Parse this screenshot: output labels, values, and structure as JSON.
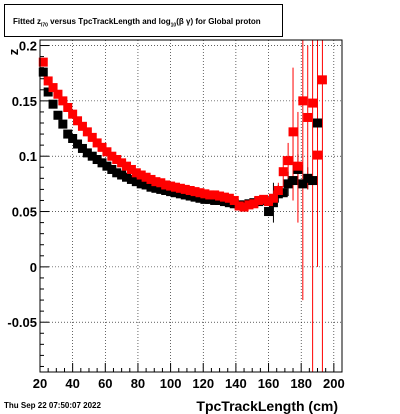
{
  "title": {
    "prefix": "Fitted  z",
    "sub1": "I70",
    "middle": "  versus TpcTrackLength and log",
    "sub2": "10",
    "suffix": "(β  γ) for Global proton"
  },
  "timestamp": "Thu Sep 22 07:50:07 2022",
  "chart_data": {
    "type": "scatter",
    "xlabel": "TpcTrackLength (cm)",
    "ylabel": "z",
    "xlim": [
      20,
      205
    ],
    "ylim": [
      -0.095,
      0.205
    ],
    "xticks": [
      20,
      40,
      60,
      80,
      100,
      120,
      140,
      160,
      180,
      200
    ],
    "yticks": [
      -0.05,
      0,
      0.05,
      0.1,
      0.15,
      0.2
    ],
    "ytick_labels": [
      "-0.05",
      "0",
      "0.05",
      "0.1",
      "0.15",
      "0.2"
    ],
    "grid": true,
    "series": [
      {
        "color": "#000000",
        "points": [
          {
            "x": 22,
            "y": 0.176
          },
          {
            "x": 25,
            "y": 0.158
          },
          {
            "x": 28,
            "y": 0.147
          },
          {
            "x": 31,
            "y": 0.137
          },
          {
            "x": 34,
            "y": 0.129
          },
          {
            "x": 37,
            "y": 0.12
          },
          {
            "x": 40,
            "y": 0.116
          },
          {
            "x": 43,
            "y": 0.111
          },
          {
            "x": 46,
            "y": 0.107
          },
          {
            "x": 49,
            "y": 0.103
          },
          {
            "x": 52,
            "y": 0.1
          },
          {
            "x": 55,
            "y": 0.097
          },
          {
            "x": 58,
            "y": 0.094
          },
          {
            "x": 61,
            "y": 0.091
          },
          {
            "x": 64,
            "y": 0.088
          },
          {
            "x": 67,
            "y": 0.085
          },
          {
            "x": 70,
            "y": 0.083
          },
          {
            "x": 73,
            "y": 0.081
          },
          {
            "x": 76,
            "y": 0.079
          },
          {
            "x": 79,
            "y": 0.077
          },
          {
            "x": 82,
            "y": 0.075
          },
          {
            "x": 85,
            "y": 0.074
          },
          {
            "x": 88,
            "y": 0.072
          },
          {
            "x": 91,
            "y": 0.071
          },
          {
            "x": 94,
            "y": 0.07
          },
          {
            "x": 97,
            "y": 0.069
          },
          {
            "x": 100,
            "y": 0.068
          },
          {
            "x": 103,
            "y": 0.067
          },
          {
            "x": 106,
            "y": 0.066
          },
          {
            "x": 109,
            "y": 0.065
          },
          {
            "x": 112,
            "y": 0.064
          },
          {
            "x": 115,
            "y": 0.063
          },
          {
            "x": 118,
            "y": 0.062
          },
          {
            "x": 121,
            "y": 0.061
          },
          {
            "x": 124,
            "y": 0.061
          },
          {
            "x": 127,
            "y": 0.06
          },
          {
            "x": 130,
            "y": 0.06
          },
          {
            "x": 133,
            "y": 0.059
          },
          {
            "x": 136,
            "y": 0.058
          },
          {
            "x": 139,
            "y": 0.057
          },
          {
            "x": 142,
            "y": 0.056
          },
          {
            "x": 145,
            "y": 0.056
          },
          {
            "x": 148,
            "y": 0.057
          },
          {
            "x": 151,
            "y": 0.058
          },
          {
            "x": 154,
            "y": 0.059
          },
          {
            "x": 157,
            "y": 0.06
          },
          {
            "x": 160,
            "y": 0.05
          },
          {
            "x": 163,
            "y": 0.058
          },
          {
            "x": 166,
            "y": 0.066
          },
          {
            "x": 169,
            "y": 0.067
          },
          {
            "x": 172,
            "y": 0.075
          },
          {
            "x": 175,
            "y": 0.078
          },
          {
            "x": 178,
            "y": 0.088
          },
          {
            "x": 181,
            "y": 0.075
          },
          {
            "x": 184,
            "y": 0.08
          },
          {
            "x": 187,
            "y": 0.078
          },
          {
            "x": 190,
            "y": 0.13
          }
        ],
        "error_bars": [
          {
            "x": 163,
            "lo": 0.04,
            "hi": 0.076
          },
          {
            "x": 166,
            "lo": 0.058,
            "hi": 0.074
          },
          {
            "x": 172,
            "lo": 0.064,
            "hi": 0.086
          },
          {
            "x": 178,
            "lo": 0.074,
            "hi": 0.102
          },
          {
            "x": 184,
            "lo": 0.07,
            "hi": 0.09
          },
          {
            "x": 190,
            "lo": 0.118,
            "hi": 0.142
          }
        ]
      },
      {
        "color": "#ff0000",
        "points": [
          {
            "x": 22,
            "y": 0.185
          },
          {
            "x": 25,
            "y": 0.168
          },
          {
            "x": 28,
            "y": 0.162
          },
          {
            "x": 31,
            "y": 0.156
          },
          {
            "x": 34,
            "y": 0.15
          },
          {
            "x": 37,
            "y": 0.144
          },
          {
            "x": 40,
            "y": 0.138
          },
          {
            "x": 43,
            "y": 0.132
          },
          {
            "x": 46,
            "y": 0.127
          },
          {
            "x": 49,
            "y": 0.122
          },
          {
            "x": 52,
            "y": 0.117
          },
          {
            "x": 55,
            "y": 0.112
          },
          {
            "x": 58,
            "y": 0.108
          },
          {
            "x": 61,
            "y": 0.104
          },
          {
            "x": 64,
            "y": 0.1
          },
          {
            "x": 67,
            "y": 0.097
          },
          {
            "x": 70,
            "y": 0.094
          },
          {
            "x": 73,
            "y": 0.091
          },
          {
            "x": 76,
            "y": 0.088
          },
          {
            "x": 79,
            "y": 0.085
          },
          {
            "x": 82,
            "y": 0.083
          },
          {
            "x": 85,
            "y": 0.081
          },
          {
            "x": 88,
            "y": 0.079
          },
          {
            "x": 91,
            "y": 0.077
          },
          {
            "x": 94,
            "y": 0.076
          },
          {
            "x": 97,
            "y": 0.074
          },
          {
            "x": 100,
            "y": 0.073
          },
          {
            "x": 103,
            "y": 0.072
          },
          {
            "x": 106,
            "y": 0.071
          },
          {
            "x": 109,
            "y": 0.07
          },
          {
            "x": 112,
            "y": 0.069
          },
          {
            "x": 115,
            "y": 0.068
          },
          {
            "x": 118,
            "y": 0.067
          },
          {
            "x": 121,
            "y": 0.066
          },
          {
            "x": 124,
            "y": 0.065
          },
          {
            "x": 127,
            "y": 0.065
          },
          {
            "x": 130,
            "y": 0.064
          },
          {
            "x": 133,
            "y": 0.063
          },
          {
            "x": 136,
            "y": 0.062
          },
          {
            "x": 139,
            "y": 0.06
          },
          {
            "x": 142,
            "y": 0.055
          },
          {
            "x": 145,
            "y": 0.054
          },
          {
            "x": 148,
            "y": 0.056
          },
          {
            "x": 151,
            "y": 0.057
          },
          {
            "x": 154,
            "y": 0.06
          },
          {
            "x": 157,
            "y": 0.061
          },
          {
            "x": 160,
            "y": 0.059
          },
          {
            "x": 163,
            "y": 0.062
          },
          {
            "x": 166,
            "y": 0.069
          },
          {
            "x": 169,
            "y": 0.086
          },
          {
            "x": 172,
            "y": 0.096
          },
          {
            "x": 175,
            "y": 0.122
          },
          {
            "x": 178,
            "y": 0.091
          },
          {
            "x": 181,
            "y": 0.15
          },
          {
            "x": 184,
            "y": 0.135
          },
          {
            "x": 187,
            "y": 0.148
          },
          {
            "x": 190,
            "y": 0.101
          },
          {
            "x": 193,
            "y": 0.169
          }
        ],
        "error_bars": [
          {
            "x": 163,
            "lo": 0.055,
            "hi": 0.069
          },
          {
            "x": 166,
            "lo": 0.062,
            "hi": 0.076
          },
          {
            "x": 169,
            "lo": 0.072,
            "hi": 0.1
          },
          {
            "x": 172,
            "lo": 0.08,
            "hi": 0.112
          },
          {
            "x": 175,
            "lo": 0.06,
            "hi": 0.18
          },
          {
            "x": 178,
            "lo": 0.04,
            "hi": 0.14
          },
          {
            "x": 181,
            "lo": -0.03,
            "hi": 0.205
          },
          {
            "x": 184,
            "lo": 0.07,
            "hi": 0.2
          },
          {
            "x": 187,
            "lo": -0.095,
            "hi": 0.205
          },
          {
            "x": 190,
            "lo": 0.0,
            "hi": 0.205
          },
          {
            "x": 193,
            "lo": -0.095,
            "hi": 0.205
          }
        ]
      }
    ]
  }
}
